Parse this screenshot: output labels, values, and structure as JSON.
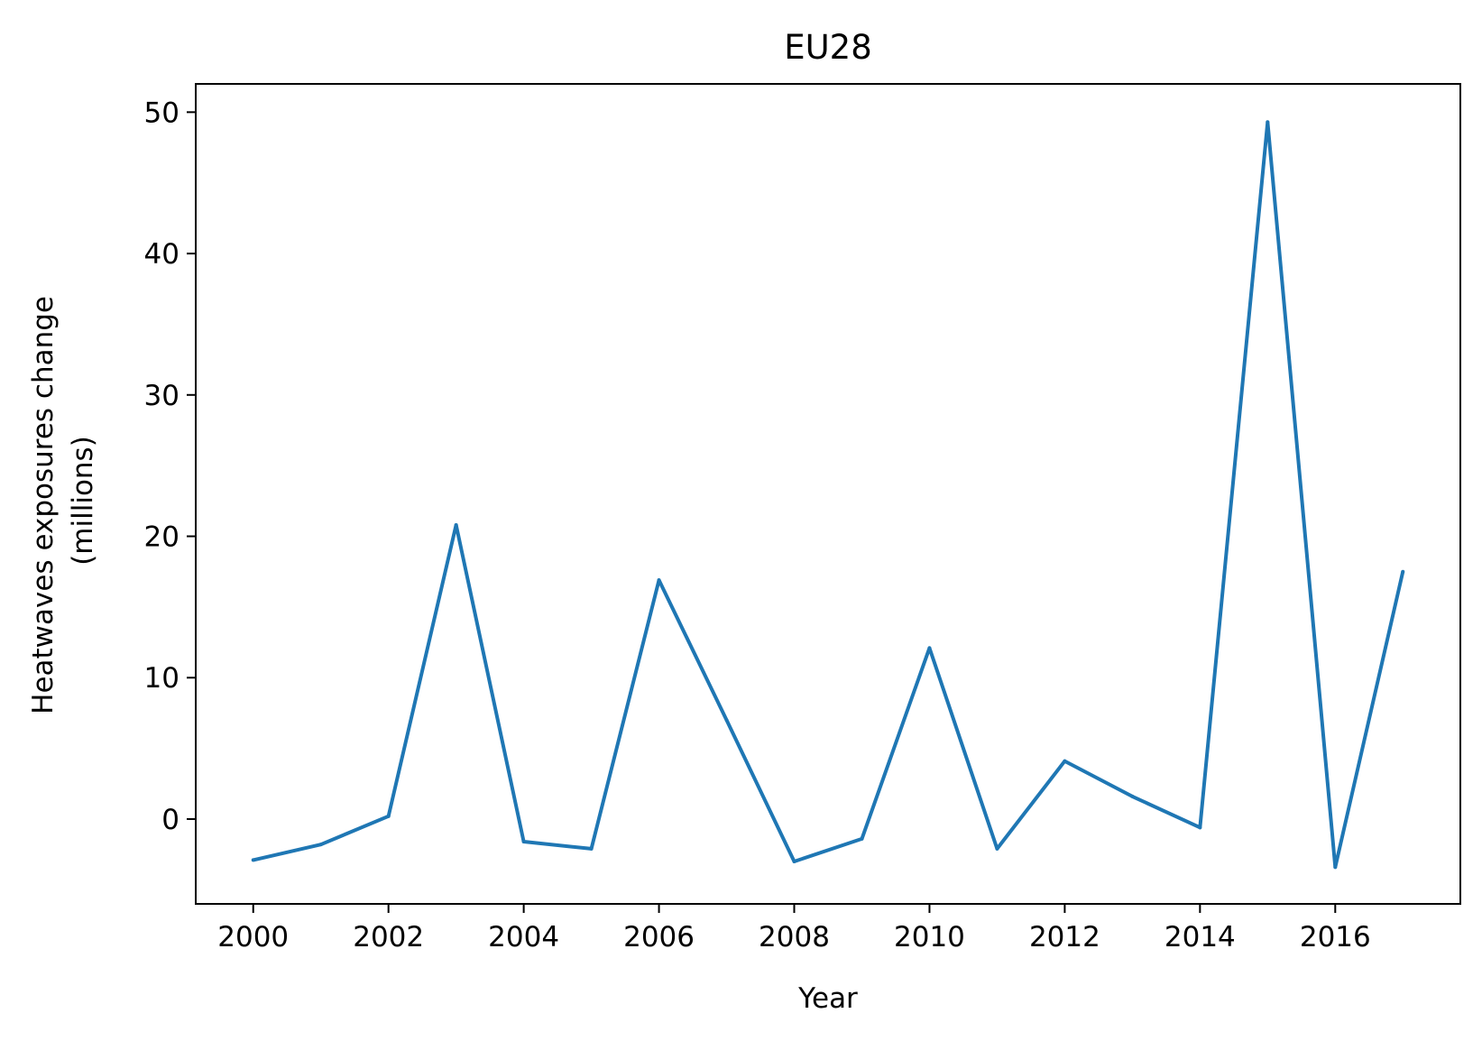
{
  "chart_data": {
    "type": "line",
    "title": "EU28",
    "xlabel": "Year",
    "ylabel_lines": [
      "Heatwaves exposures change",
      "(millions)"
    ],
    "x": [
      2000,
      2001,
      2002,
      2003,
      2004,
      2005,
      2006,
      2007,
      2008,
      2009,
      2010,
      2011,
      2012,
      2013,
      2014,
      2015,
      2016,
      2017
    ],
    "series": [
      {
        "values": [
          -2.9,
          -1.8,
          0.2,
          20.8,
          -1.6,
          -2.1,
          16.9,
          7.0,
          -3.0,
          -1.4,
          12.1,
          -2.1,
          4.1,
          1.6,
          -0.6,
          49.3,
          -3.4,
          17.5
        ],
        "color": "#1f77b4"
      }
    ],
    "xlim": [
      1999.15,
      2017.85
    ],
    "ylim": [
      -6.0,
      52.0
    ],
    "xticks": [
      "2000",
      "2002",
      "2004",
      "2006",
      "2008",
      "2010",
      "2012",
      "2014",
      "2016"
    ],
    "yticks": [
      "0",
      "10",
      "20",
      "30",
      "40",
      "50"
    ],
    "grid": false,
    "legend": "none"
  }
}
